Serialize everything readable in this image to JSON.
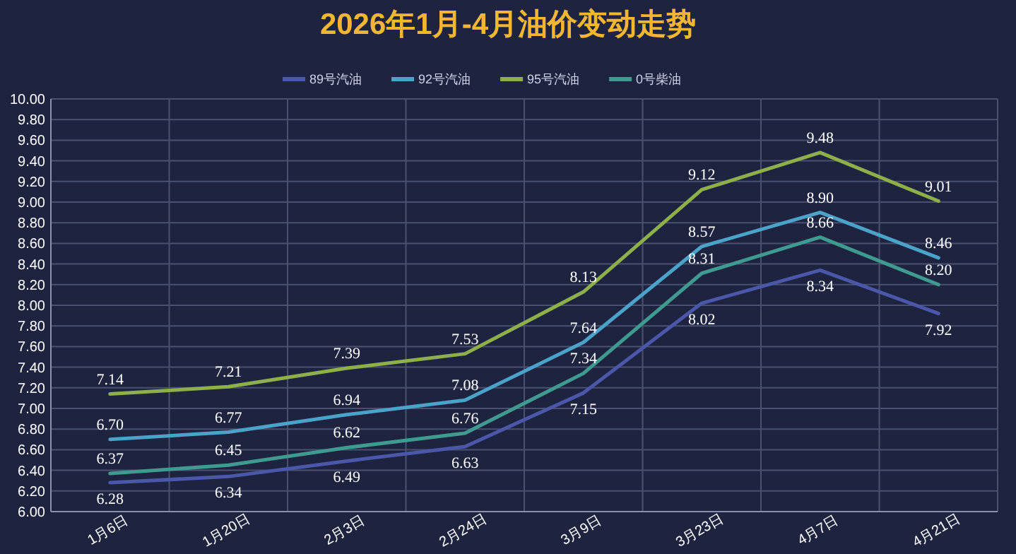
{
  "chart_data": {
    "type": "line",
    "title": "2026年1月-4月油价变动走势",
    "categories": [
      "1月6日",
      "1月20日",
      "2月3日",
      "2月24日",
      "3月9日",
      "3月23日",
      "4月7日",
      "4月21日"
    ],
    "series": [
      {
        "name": "89号汽油",
        "color": "#4b57a8",
        "values": [
          6.28,
          6.34,
          6.49,
          6.63,
          7.15,
          8.02,
          8.34,
          7.92
        ],
        "value_labels": [
          "6.28",
          "6.34",
          "6.49",
          "6.63",
          "7.15",
          "8.02",
          "8.34",
          "7.92"
        ]
      },
      {
        "name": "92号汽油",
        "color": "#4ba3c9",
        "values": [
          6.7,
          6.77,
          6.94,
          7.08,
          7.64,
          8.57,
          8.9,
          8.46
        ],
        "value_labels": [
          "6.70",
          "6.77",
          "6.94",
          "7.08",
          "7.64",
          "8.57",
          "8.90",
          "8.46"
        ]
      },
      {
        "name": "95号汽油",
        "color": "#8db04b",
        "values": [
          7.14,
          7.21,
          7.39,
          7.53,
          8.13,
          9.12,
          9.48,
          9.01
        ],
        "value_labels": [
          "7.14",
          "7.21",
          "7.39",
          "7.53",
          "8.13",
          "9.12",
          "9.48",
          "9.01"
        ]
      },
      {
        "name": "0号柴油",
        "color": "#3f9b90",
        "values": [
          6.37,
          6.45,
          6.62,
          6.76,
          7.34,
          8.31,
          8.66,
          8.2
        ],
        "value_labels": [
          "6.37",
          "6.45",
          "6.62",
          "6.76",
          "7.34",
          "8.31",
          "8.66",
          "8.20"
        ]
      }
    ],
    "ylim": [
      6,
      10
    ],
    "yticks": [
      {
        "value": 6,
        "label": "6.00"
      },
      {
        "value": 6.2,
        "label": "6.20"
      },
      {
        "value": 6.4,
        "label": "6.40"
      },
      {
        "value": 6.6,
        "label": "6.60"
      },
      {
        "value": 6.8,
        "label": "6.80"
      },
      {
        "value": 7,
        "label": "7.00"
      },
      {
        "value": 7.2,
        "label": "7.20"
      },
      {
        "value": 7.4,
        "label": "7.40"
      },
      {
        "value": 7.6,
        "label": "7.60"
      },
      {
        "value": 7.8,
        "label": "7.80"
      },
      {
        "value": 8,
        "label": "8.00"
      },
      {
        "value": 8.2,
        "label": "8.20"
      },
      {
        "value": 8.4,
        "label": "8.40"
      },
      {
        "value": 8.6,
        "label": "8.60"
      },
      {
        "value": 8.8,
        "label": "8.80"
      },
      {
        "value": 9,
        "label": "9.00"
      },
      {
        "value": 9.2,
        "label": "9.20"
      },
      {
        "value": 9.4,
        "label": "9.40"
      },
      {
        "value": 9.6,
        "label": "9.60"
      },
      {
        "value": 9.8,
        "label": "9.80"
      },
      {
        "value": 10,
        "label": "10.00"
      }
    ],
    "grid": true,
    "legend": "top",
    "marker": "none",
    "line_style": "solid"
  }
}
